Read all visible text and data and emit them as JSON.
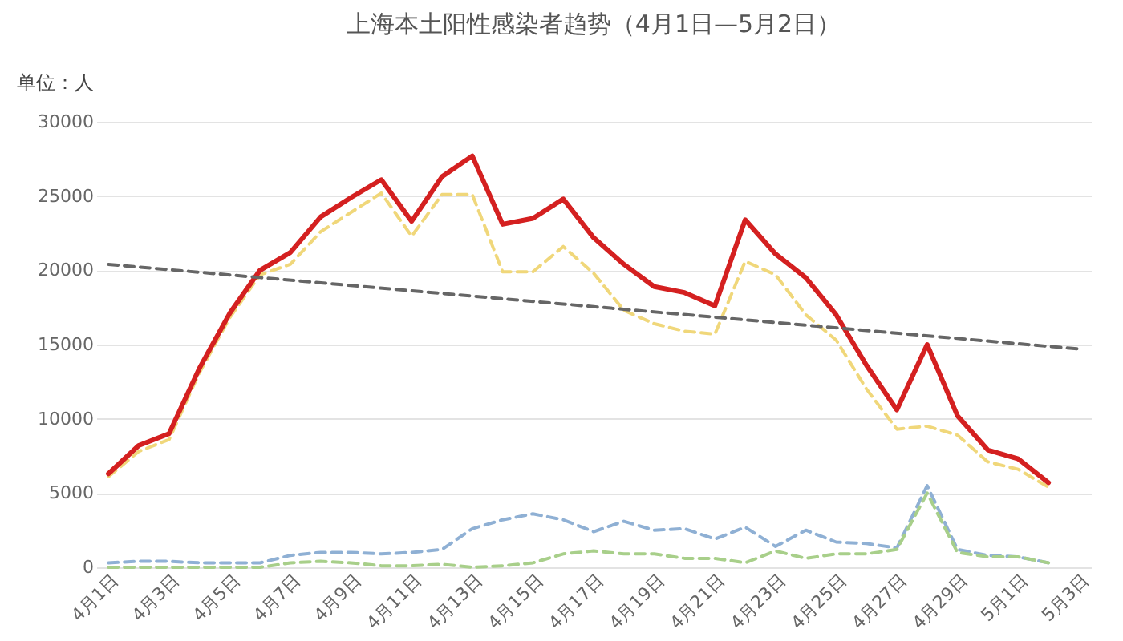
{
  "chart_data": {
    "type": "line",
    "title": "上海本土阳性感染者趋势（4月1日—5月2日）",
    "ylabel": "单位：人",
    "categories": [
      "4月1日",
      null,
      "4月3日",
      null,
      "4月5日",
      null,
      "4月7日",
      null,
      "4月9日",
      null,
      "4月11日",
      null,
      "4月13日",
      null,
      "4月15日",
      null,
      "4月17日",
      null,
      "4月19日",
      null,
      "4月21日",
      null,
      "4月23日",
      null,
      "4月25日",
      null,
      "4月27日",
      null,
      "4月29日",
      null,
      "5月1日",
      null,
      "5月3日"
    ],
    "series": [
      {
        "color": "#f0d77a",
        "line_style": "dashed",
        "values": [
          6100,
          7800,
          8600,
          13100,
          16800,
          19700,
          20400,
          22600,
          23900,
          25200,
          22300,
          25100,
          25100,
          19900,
          19900,
          21600,
          19800,
          17300,
          16400,
          15900,
          15700,
          20600,
          19700,
          17000,
          15300,
          12000,
          9300,
          9500,
          8900,
          7100,
          6600,
          5400,
          null
        ]
      },
      {
        "color": "#8fb0d4",
        "line_style": "dashed",
        "values": [
          300,
          400,
          400,
          300,
          300,
          300,
          800,
          1000,
          1000,
          900,
          1000,
          1200,
          2600,
          3200,
          3600,
          3200,
          2400,
          3100,
          2500,
          2600,
          1900,
          2700,
          1400,
          2500,
          1700,
          1600,
          1300,
          5500,
          1200,
          800,
          700,
          300,
          null
        ]
      },
      {
        "color": "#a8cf8a",
        "line_style": "dashed",
        "values": [
          0,
          0,
          0,
          0,
          0,
          0,
          300,
          400,
          300,
          100,
          100,
          200,
          0,
          100,
          300,
          900,
          1100,
          900,
          900,
          600,
          600,
          300,
          1100,
          600,
          900,
          900,
          1200,
          5000,
          1000,
          700,
          700,
          300,
          null
        ]
      },
      {
        "color": "#d42020",
        "line_style": "solid",
        "values": [
          6300,
          8200,
          9000,
          13400,
          17100,
          20000,
          21200,
          23600,
          24900,
          26100,
          23300,
          26300,
          27700,
          23100,
          23500,
          24800,
          22200,
          20400,
          18900,
          18500,
          17600,
          23400,
          21100,
          19500,
          17000,
          13600,
          10600,
          15000,
          10200,
          7900,
          7300,
          5700,
          null
        ]
      },
      {
        "type": "line",
        "color": "#666666",
        "line_style": "dashed",
        "x": [
          "4月1日",
          "5月3日"
        ],
        "values": [
          20400,
          14700
        ]
      }
    ],
    "ylim": [
      0,
      30000
    ],
    "yticks": [
      0,
      5000,
      10000,
      15000,
      20000,
      25000,
      30000
    ],
    "grid": "y",
    "marker": "none"
  }
}
